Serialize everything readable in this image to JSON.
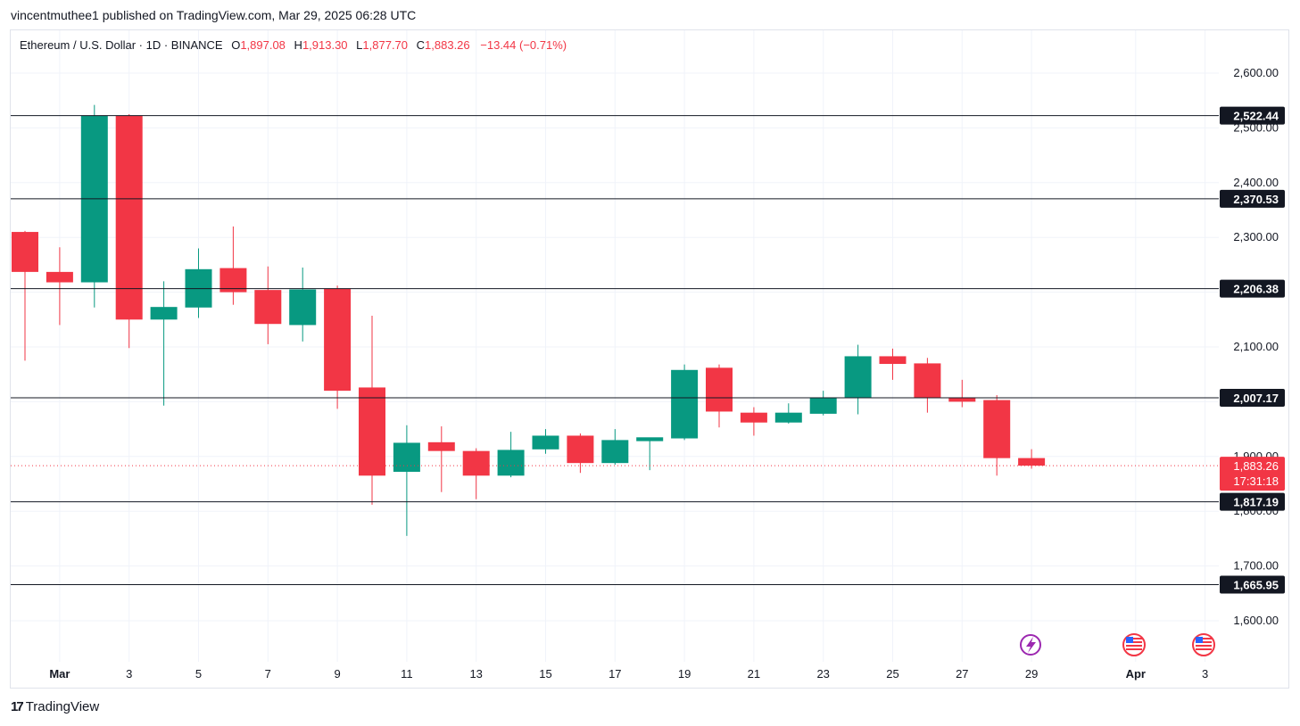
{
  "header": {
    "published_text": "vincentmuthee1 published on TradingView.com, Mar 29, 2025 06:28 UTC"
  },
  "legend": {
    "symbol": "Ethereum / U.S. Dollar · 1D · BINANCE",
    "o_label": "O",
    "o_value": "1,897.08",
    "h_label": "H",
    "h_value": "1,913.30",
    "l_label": "L",
    "l_value": "1,877.70",
    "c_label": "C",
    "c_value": "1,883.26",
    "change": "−13.44 (−0.71%)"
  },
  "footer": {
    "brand_logo": "17",
    "brand_name": "TradingView"
  },
  "colors": {
    "up": "#089981",
    "down": "#f23645",
    "grid": "#f0f3fa",
    "level": "#131722"
  },
  "chart_data": {
    "type": "candlestick",
    "symbol": "ETHUSD",
    "interval": "1D",
    "y_ticks": [
      1600,
      1700,
      1800,
      1900,
      2000,
      2100,
      2200,
      2300,
      2400,
      2500,
      2600
    ],
    "y_tick_labels": [
      "1,600.00",
      "1,700.00",
      "1,800.00",
      "1,900.00",
      "2,000.00",
      "2,100.00",
      "2,200.00",
      "2,300.00",
      "2,400.00",
      "2,500.00",
      "2,600.00"
    ],
    "x_ticks": [
      {
        "date": "2025-03-01",
        "label": "Mar"
      },
      {
        "date": "2025-03-03",
        "label": "3"
      },
      {
        "date": "2025-03-05",
        "label": "5"
      },
      {
        "date": "2025-03-07",
        "label": "7"
      },
      {
        "date": "2025-03-09",
        "label": "9"
      },
      {
        "date": "2025-03-11",
        "label": "11"
      },
      {
        "date": "2025-03-13",
        "label": "13"
      },
      {
        "date": "2025-03-15",
        "label": "15"
      },
      {
        "date": "2025-03-17",
        "label": "17"
      },
      {
        "date": "2025-03-19",
        "label": "19"
      },
      {
        "date": "2025-03-21",
        "label": "21"
      },
      {
        "date": "2025-03-23",
        "label": "23"
      },
      {
        "date": "2025-03-25",
        "label": "25"
      },
      {
        "date": "2025-03-27",
        "label": "27"
      },
      {
        "date": "2025-03-29",
        "label": "29"
      },
      {
        "date": "2025-04-01",
        "label": "Apr"
      },
      {
        "date": "2025-04-03",
        "label": "3"
      }
    ],
    "levels": [
      {
        "value": 2522.44,
        "label": "2,522.44"
      },
      {
        "value": 2370.53,
        "label": "2,370.53"
      },
      {
        "value": 2206.38,
        "label": "2,206.38"
      },
      {
        "value": 2007.17,
        "label": "2,007.17"
      },
      {
        "value": 1817.19,
        "label": "1,817.19"
      },
      {
        "value": 1665.95,
        "label": "1,665.95"
      }
    ],
    "last_price": {
      "value": 1883.26,
      "label": "1,883.26",
      "countdown": "17:31:18"
    },
    "candles": [
      {
        "date": "2025-02-28",
        "o": 2310,
        "h": 2312,
        "l": 2075,
        "c": 2237
      },
      {
        "date": "2025-03-01",
        "o": 2237,
        "h": 2282,
        "l": 2140,
        "c": 2218
      },
      {
        "date": "2025-03-02",
        "o": 2218,
        "h": 2542,
        "l": 2172,
        "c": 2522
      },
      {
        "date": "2025-03-03",
        "o": 2522,
        "h": 2525,
        "l": 2098,
        "c": 2150
      },
      {
        "date": "2025-03-04",
        "o": 2150,
        "h": 2220,
        "l": 1993,
        "c": 2173
      },
      {
        "date": "2025-03-05",
        "o": 2172,
        "h": 2280,
        "l": 2153,
        "c": 2242
      },
      {
        "date": "2025-03-06",
        "o": 2244,
        "h": 2320,
        "l": 2177,
        "c": 2200
      },
      {
        "date": "2025-03-07",
        "o": 2204,
        "h": 2247,
        "l": 2105,
        "c": 2142
      },
      {
        "date": "2025-03-08",
        "o": 2140,
        "h": 2245,
        "l": 2110,
        "c": 2205
      },
      {
        "date": "2025-03-09",
        "o": 2206,
        "h": 2212,
        "l": 1987,
        "c": 2020
      },
      {
        "date": "2025-03-10",
        "o": 2026,
        "h": 2157,
        "l": 1812,
        "c": 1865
      },
      {
        "date": "2025-03-11",
        "o": 1872,
        "h": 1957,
        "l": 1755,
        "c": 1925
      },
      {
        "date": "2025-03-12",
        "o": 1926,
        "h": 1955,
        "l": 1835,
        "c": 1910
      },
      {
        "date": "2025-03-13",
        "o": 1910,
        "h": 1915,
        "l": 1822,
        "c": 1865
      },
      {
        "date": "2025-03-14",
        "o": 1865,
        "h": 1945,
        "l": 1862,
        "c": 1912
      },
      {
        "date": "2025-03-15",
        "o": 1913,
        "h": 1950,
        "l": 1905,
        "c": 1938
      },
      {
        "date": "2025-03-16",
        "o": 1938,
        "h": 1942,
        "l": 1870,
        "c": 1888
      },
      {
        "date": "2025-03-17",
        "o": 1888,
        "h": 1950,
        "l": 1885,
        "c": 1930
      },
      {
        "date": "2025-03-18",
        "o": 1928,
        "h": 1930,
        "l": 1875,
        "c": 1935
      },
      {
        "date": "2025-03-19",
        "o": 1933,
        "h": 2068,
        "l": 1930,
        "c": 2058
      },
      {
        "date": "2025-03-20",
        "o": 2062,
        "h": 2068,
        "l": 1953,
        "c": 1982
      },
      {
        "date": "2025-03-21",
        "o": 1980,
        "h": 1990,
        "l": 1938,
        "c": 1962
      },
      {
        "date": "2025-03-22",
        "o": 1962,
        "h": 1997,
        "l": 1960,
        "c": 1980
      },
      {
        "date": "2025-03-23",
        "o": 1978,
        "h": 2020,
        "l": 1975,
        "c": 2008
      },
      {
        "date": "2025-03-24",
        "o": 2008,
        "h": 2104,
        "l": 1977,
        "c": 2083
      },
      {
        "date": "2025-03-25",
        "o": 2083,
        "h": 2097,
        "l": 2040,
        "c": 2069
      },
      {
        "date": "2025-03-26",
        "o": 2070,
        "h": 2080,
        "l": 1980,
        "c": 2008
      },
      {
        "date": "2025-03-27",
        "o": 2007,
        "h": 2040,
        "l": 1990,
        "c": 2000
      },
      {
        "date": "2025-03-28",
        "o": 2003,
        "h": 2012,
        "l": 1865,
        "c": 1897
      },
      {
        "date": "2025-03-29",
        "o": 1897.08,
        "h": 1913.3,
        "l": 1877.7,
        "c": 1883.26
      }
    ]
  }
}
